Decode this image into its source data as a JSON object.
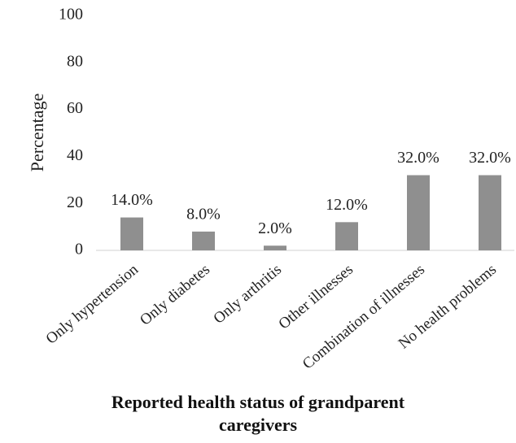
{
  "chart_data": {
    "type": "bar",
    "y_label": "Percentage",
    "x_label": "Reported health status of grandparent caregivers",
    "categories": [
      "Only hypertension",
      "Only diabetes",
      "Only arthritis",
      "Other illnesses",
      "Combination of illnesses",
      "No health problems"
    ],
    "values": [
      14,
      8,
      2,
      12,
      32,
      32
    ],
    "value_labels": [
      "14.0%",
      "8.0%",
      "2.0%",
      "12.0%",
      "32.0%",
      "32.0%"
    ],
    "color": "#8f8f8f",
    "ylim": [
      0,
      100
    ],
    "yticks": [
      0,
      20,
      40,
      60,
      80,
      100
    ],
    "grid": false
  }
}
